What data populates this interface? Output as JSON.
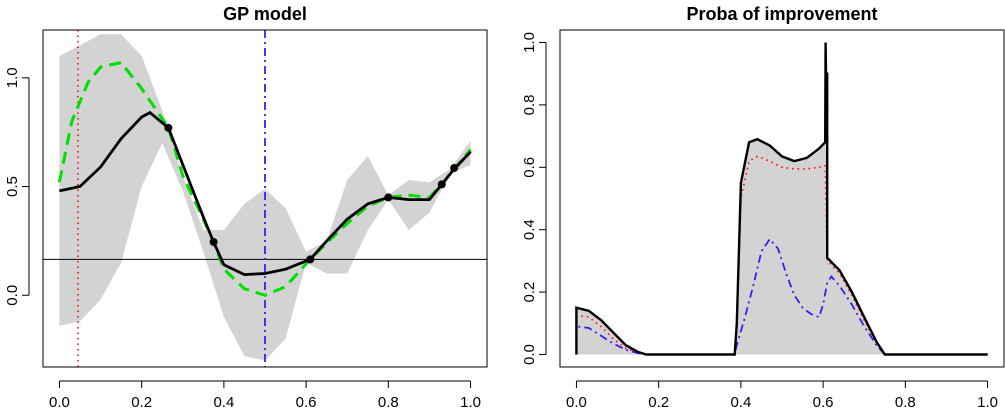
{
  "chart_data": [
    {
      "type": "line",
      "title": "GP model",
      "xlabel": "",
      "ylabel": "",
      "xlim": [
        -0.04,
        1.04
      ],
      "ylim": [
        -0.33,
        1.22
      ],
      "xticks": [
        "0.0",
        "0.2",
        "0.4",
        "0.6",
        "0.8",
        "1.0"
      ],
      "yticks": [
        "0.0",
        "0.5",
        "1.0"
      ],
      "grid": false,
      "colors": {
        "band": "#d3d3d3",
        "mean": "#000000",
        "truth": "#00e000",
        "red_vline": "#ff0000",
        "blue_vline": "#3b1cf0",
        "hline": "#000000"
      },
      "series": [
        {
          "role": "confidence-band-upper",
          "x": [
            0.0,
            0.05,
            0.1,
            0.15,
            0.2,
            0.25,
            0.3,
            0.35,
            0.4,
            0.45,
            0.5,
            0.55,
            0.6,
            0.65,
            0.7,
            0.75,
            0.8,
            0.85,
            0.9,
            0.95,
            1.0
          ],
          "y": [
            1.1,
            1.15,
            1.2,
            1.2,
            1.1,
            0.85,
            0.55,
            0.3,
            0.3,
            0.42,
            0.49,
            0.4,
            0.2,
            0.25,
            0.53,
            0.64,
            0.46,
            0.53,
            0.52,
            0.58,
            0.71
          ]
        },
        {
          "role": "confidence-band-lower",
          "x": [
            0.0,
            0.05,
            0.1,
            0.15,
            0.2,
            0.25,
            0.3,
            0.35,
            0.4,
            0.45,
            0.5,
            0.55,
            0.6,
            0.65,
            0.7,
            0.75,
            0.8,
            0.85,
            0.9,
            0.95,
            1.0
          ],
          "y": [
            -0.14,
            -0.12,
            -0.02,
            0.15,
            0.5,
            0.7,
            0.48,
            0.2,
            -0.1,
            -0.28,
            -0.3,
            -0.2,
            0.15,
            0.1,
            0.1,
            0.3,
            0.44,
            0.3,
            0.38,
            0.56,
            0.6
          ]
        },
        {
          "role": "gp-mean",
          "x": [
            0.0,
            0.05,
            0.1,
            0.15,
            0.2,
            0.22,
            0.265,
            0.3,
            0.35,
            0.375,
            0.4,
            0.45,
            0.5,
            0.55,
            0.61,
            0.65,
            0.7,
            0.75,
            0.8,
            0.85,
            0.9,
            0.93,
            0.96,
            1.0
          ],
          "y": [
            0.48,
            0.5,
            0.59,
            0.72,
            0.82,
            0.84,
            0.77,
            0.6,
            0.36,
            0.245,
            0.14,
            0.095,
            0.1,
            0.12,
            0.165,
            0.25,
            0.35,
            0.42,
            0.45,
            0.44,
            0.44,
            0.51,
            0.58,
            0.66
          ]
        },
        {
          "role": "true-function",
          "x": [
            0.0,
            0.03,
            0.07,
            0.1,
            0.15,
            0.2,
            0.265,
            0.3,
            0.35,
            0.375,
            0.4,
            0.45,
            0.5,
            0.55,
            0.61,
            0.65,
            0.7,
            0.75,
            0.8,
            0.85,
            0.9,
            0.93,
            0.96,
            1.0
          ],
          "y": [
            0.52,
            0.8,
            0.98,
            1.05,
            1.07,
            0.95,
            0.77,
            0.55,
            0.35,
            0.245,
            0.12,
            0.03,
            0.0,
            0.04,
            0.165,
            0.24,
            0.33,
            0.41,
            0.45,
            0.46,
            0.45,
            0.51,
            0.58,
            0.67
          ]
        }
      ],
      "observations": {
        "x": [
          0.265,
          0.375,
          0.61,
          0.8,
          0.93,
          0.96
        ],
        "y": [
          0.77,
          0.245,
          0.165,
          0.45,
          0.51,
          0.585
        ]
      },
      "hline_y": 0.165,
      "red_vline_x": 0.045,
      "blue_vline_x": 0.5
    },
    {
      "type": "area",
      "title": "Proba of improvement",
      "xlabel": "",
      "ylabel": "",
      "xlim": [
        -0.04,
        1.04
      ],
      "ylim": [
        -0.04,
        1.04
      ],
      "xticks": [
        "0.0",
        "0.2",
        "0.4",
        "0.6",
        "0.8",
        "1.0"
      ],
      "yticks": [
        "0.0",
        "0.2",
        "0.4",
        "0.6",
        "0.8",
        "1.0"
      ],
      "grid": false,
      "colors": {
        "fill": "#d3d3d3",
        "main": "#000000",
        "red": "#ff0000",
        "blue": "#3b1cf0"
      },
      "series": [
        {
          "role": "probability-black",
          "x": [
            0.0,
            0.0,
            0.03,
            0.06,
            0.09,
            0.12,
            0.15,
            0.17,
            0.2,
            0.385,
            0.39,
            0.4,
            0.42,
            0.44,
            0.47,
            0.5,
            0.53,
            0.56,
            0.59,
            0.605,
            0.606,
            0.607,
            0.61,
            0.61,
            0.64,
            0.67,
            0.7,
            0.73,
            0.75,
            0.78,
            1.0
          ],
          "y": [
            0.0,
            0.15,
            0.14,
            0.11,
            0.07,
            0.03,
            0.008,
            0.0,
            0.0,
            0.0,
            0.1,
            0.55,
            0.68,
            0.69,
            0.67,
            0.635,
            0.62,
            0.63,
            0.66,
            0.68,
            1.0,
            0.9,
            0.9,
            0.31,
            0.27,
            0.2,
            0.12,
            0.04,
            0.0,
            0.0,
            0.0
          ]
        },
        {
          "role": "probability-red",
          "x": [
            0.0,
            0.0,
            0.03,
            0.06,
            0.09,
            0.12,
            0.15,
            0.17,
            0.2,
            0.385,
            0.39,
            0.4,
            0.42,
            0.44,
            0.47,
            0.5,
            0.53,
            0.56,
            0.59,
            0.605,
            0.61,
            0.64,
            0.67,
            0.7,
            0.73,
            0.75,
            0.78,
            1.0
          ],
          "y": [
            0.0,
            0.125,
            0.12,
            0.09,
            0.05,
            0.02,
            0.005,
            0.0,
            0.0,
            0.0,
            0.08,
            0.5,
            0.62,
            0.635,
            0.62,
            0.6,
            0.595,
            0.595,
            0.6,
            0.605,
            0.3,
            0.26,
            0.19,
            0.11,
            0.035,
            0.0,
            0.0,
            0.0
          ]
        },
        {
          "role": "probability-blue",
          "x": [
            0.0,
            0.0,
            0.03,
            0.06,
            0.09,
            0.12,
            0.15,
            0.17,
            0.2,
            0.385,
            0.39,
            0.41,
            0.43,
            0.45,
            0.47,
            0.49,
            0.51,
            0.53,
            0.55,
            0.57,
            0.59,
            0.6,
            0.61,
            0.62,
            0.64,
            0.67,
            0.7,
            0.73,
            0.75,
            0.78,
            1.0
          ],
          "y": [
            0.0,
            0.09,
            0.085,
            0.06,
            0.035,
            0.015,
            0.004,
            0.0,
            0.0,
            0.0,
            0.03,
            0.12,
            0.22,
            0.33,
            0.37,
            0.34,
            0.26,
            0.19,
            0.15,
            0.13,
            0.12,
            0.16,
            0.23,
            0.25,
            0.22,
            0.16,
            0.09,
            0.03,
            0.0,
            0.0,
            0.0
          ]
        }
      ]
    }
  ]
}
